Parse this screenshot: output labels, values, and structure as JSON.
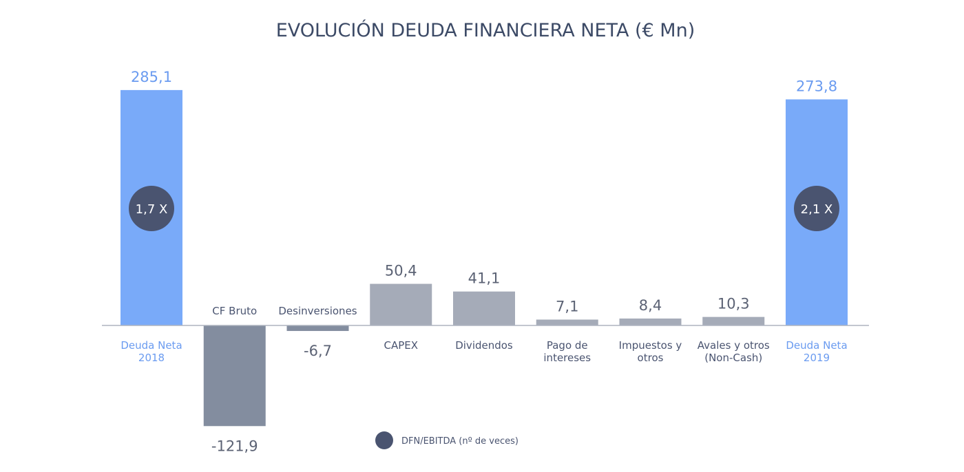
{
  "chart_data": {
    "type": "bar",
    "subtype": "waterfall",
    "title": "EVOLUCIÓN DEUDA FINANCIERA NETA (€ Mn)",
    "categories": [
      [
        "Deuda Neta",
        "2018"
      ],
      [
        "CF Bruto"
      ],
      [
        "Desinversiones"
      ],
      [
        "CAPEX"
      ],
      [
        "Dividendos"
      ],
      [
        "Pago de",
        "intereses"
      ],
      [
        "Impuestos y",
        "otros"
      ],
      [
        "Avales y otros",
        "(Non-Cash)"
      ],
      [
        "Deuda Neta",
        "2019"
      ]
    ],
    "values": [
      285.1,
      -121.9,
      -6.7,
      50.4,
      41.1,
      7.1,
      8.4,
      10.3,
      273.8
    ],
    "value_labels": [
      "285,1",
      "-121,9",
      "-6,7",
      "50,4",
      "41,1",
      "7,1",
      "8,4",
      "10,3",
      "273,8"
    ],
    "bar_kind": [
      "total",
      "change",
      "change",
      "change",
      "change",
      "change",
      "change",
      "change",
      "total"
    ],
    "ratio_badges": [
      {
        "bar_index": 0,
        "label": "1,7 X"
      },
      {
        "bar_index": 8,
        "label": "2,1 X"
      }
    ],
    "legend": {
      "label": "DFN/EBITDA (nº de veces)",
      "placement": "bottom-center"
    },
    "colors": {
      "total": "#79aaf9",
      "positive": "#a5abb8",
      "negative": "#838d9f",
      "badge": "#4a5470",
      "axis": "#aeb4bf",
      "text": "#4a5470",
      "total_text": "#6a9bf0"
    },
    "grid": false
  }
}
